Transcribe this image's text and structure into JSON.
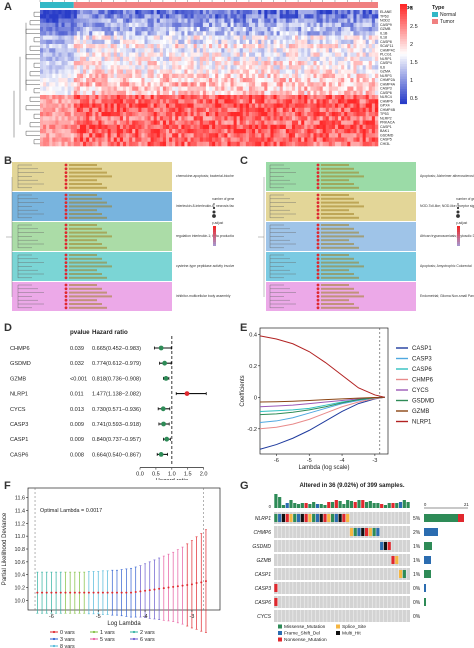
{
  "panels": {
    "A": {
      "letter": "A"
    },
    "B": {
      "letter": "B"
    },
    "C": {
      "letter": "C"
    },
    "D": {
      "letter": "D"
    },
    "E": {
      "letter": "E"
    },
    "F": {
      "letter": "F"
    },
    "G": {
      "letter": "G"
    }
  },
  "heatmap": {
    "legend_title": "Type",
    "legend_items": [
      {
        "label": "Normal",
        "color": "#33b8c6"
      },
      {
        "label": "Tumor",
        "color": "#f08080"
      }
    ],
    "scale_ticks": [
      "3",
      "2.5",
      "2",
      "1.5",
      "1",
      "0.5"
    ],
    "genes": [
      "ELANE",
      "TP63",
      "NOD2",
      "CASP9",
      "GZMB",
      "IL1B",
      "IL18",
      "CASP8",
      "SCAF11",
      "CHMP4C",
      "PLCG1",
      "NLRP1",
      "CASP4",
      "IL6",
      "GZMA",
      "NLRP3",
      "CHMP2A",
      "CHMP4A",
      "CASP3",
      "CASP6",
      "NLRC4",
      "CHMP6",
      "GPX4",
      "CHMP4B",
      "TP53",
      "NLRP2",
      "PRKACA",
      "CASP1",
      "BAK1",
      "GSDMD",
      "CASP5",
      "CHI3L"
    ]
  },
  "enrich_B": {
    "groups": [
      {
        "color": "#d9c875",
        "label": "chemokine-apoptosis; bacterial-biochem..."
      },
      {
        "color": "#4b9bd3",
        "label": "interleukin-8-interleukin-6; necrosis factor"
      },
      {
        "color": "#8fd08a",
        "label": "regulation interleukin-1; beta production"
      },
      {
        "color": "#4fc7c7",
        "label": "cysteine-type peptidase activity involved"
      },
      {
        "color": "#e58ce0",
        "label": "inhibitor-multicellular body assembly"
      }
    ],
    "size_title": "number of genes",
    "color_title": "p.adjust"
  },
  "enrich_C": {
    "groups": [
      {
        "color": "#79cf8a",
        "label": "Apoptosis; Alzheimer atherosclerosis"
      },
      {
        "color": "#d9c875",
        "label": "NOD-Toll-like; NOD-like receptor signaling"
      },
      {
        "color": "#7fb0e0",
        "label": "African trypanosomiasis; Cytosolic DNA-sensing"
      },
      {
        "color": "#4fb8d8",
        "label": "Apoptosis; Amyotrophic Colorectal"
      },
      {
        "color": "#e58ce0",
        "label": "Endometrial; Glioma Non-small Pancreatic"
      }
    ],
    "size_title": "number of genes",
    "color_title": "p.adjust"
  },
  "chart_data": [
    {
      "type": "scatter",
      "panel": "D",
      "columns": [
        "pvalue",
        "Hazard ratio"
      ],
      "rows": [
        {
          "gene": "CHMP6",
          "pvalue": "0.039",
          "hr_text": "0.665(0.452−0.983)",
          "hr": 0.665,
          "lo": 0.452,
          "hi": 0.983
        },
        {
          "gene": "GSDMD",
          "pvalue": "0.032",
          "hr_text": "0.774(0.612−0.979)",
          "hr": 0.774,
          "lo": 0.612,
          "hi": 0.979
        },
        {
          "gene": "GZMB",
          "pvalue": "<0.001",
          "hr_text": "0.818(0.736−0.908)",
          "hr": 0.818,
          "lo": 0.736,
          "hi": 0.908
        },
        {
          "gene": "NLRP1",
          "pvalue": "0.011",
          "hr_text": "1.477(1.138−2.082)",
          "hr": 1.477,
          "lo": 1.138,
          "hi": 2.082
        },
        {
          "gene": "CYCS",
          "pvalue": "0.013",
          "hr_text": "0.730(0.571−0.936)",
          "hr": 0.73,
          "lo": 0.571,
          "hi": 0.936
        },
        {
          "gene": "CASP3",
          "pvalue": "0.009",
          "hr_text": "0.741(0.593−0.918)",
          "hr": 0.741,
          "lo": 0.593,
          "hi": 0.918
        },
        {
          "gene": "CASP1",
          "pvalue": "0.009",
          "hr_text": "0.840(0.737−0.957)",
          "hr": 0.84,
          "lo": 0.737,
          "hi": 0.957
        },
        {
          "gene": "CASP6",
          "pvalue": "0.008",
          "hr_text": "0.664(0.540−0.867)",
          "hr": 0.664,
          "lo": 0.54,
          "hi": 0.867
        }
      ],
      "xlabel": "Hazard ratio",
      "xticks": [
        "0.0",
        "0.5",
        "1.0",
        "1.5",
        "2.0"
      ],
      "xlim": [
        0,
        2.2
      ],
      "reference_line": 1.0,
      "colors": {
        "protective": "#2e8b57",
        "risk": "#e0282e"
      }
    },
    {
      "type": "line",
      "panel": "E",
      "xlabel": "Lambda (log scale)",
      "ylabel": "Coefficients",
      "xticks": [
        "-6",
        "-5",
        "-4",
        "-3"
      ],
      "yticks": [
        "0.4",
        "0.2",
        "0",
        "-0.2"
      ],
      "xlim": [
        -6.5,
        -2.6
      ],
      "ylim": [
        -0.36,
        0.44
      ],
      "x": [
        -6.5,
        -6.0,
        -5.5,
        -5.0,
        -4.5,
        -4.0,
        -3.5,
        -3.0,
        -2.7
      ],
      "series": [
        {
          "name": "CASP1",
          "color": "#1f3b9e",
          "values": [
            -0.33,
            -0.3,
            -0.26,
            -0.21,
            -0.15,
            -0.09,
            -0.04,
            -0.01,
            0
          ]
        },
        {
          "name": "CASP3",
          "color": "#4fa8e0",
          "values": [
            -0.16,
            -0.15,
            -0.13,
            -0.1,
            -0.07,
            -0.04,
            -0.02,
            -0.005,
            0
          ]
        },
        {
          "name": "CASP6",
          "color": "#2fc0c0",
          "values": [
            -0.09,
            -0.085,
            -0.08,
            -0.07,
            -0.05,
            -0.03,
            -0.015,
            -0.004,
            0
          ]
        },
        {
          "name": "CHMP6",
          "color": "#e88a8a",
          "values": [
            -0.2,
            -0.19,
            -0.17,
            -0.14,
            -0.1,
            -0.06,
            -0.03,
            -0.008,
            0
          ]
        },
        {
          "name": "CYCS",
          "color": "#9b59b6",
          "values": [
            -0.06,
            -0.055,
            -0.05,
            -0.04,
            -0.03,
            -0.02,
            -0.01,
            -0.002,
            0
          ]
        },
        {
          "name": "GSDMD",
          "color": "#2e8b57",
          "values": [
            -0.11,
            -0.105,
            -0.095,
            -0.08,
            -0.06,
            -0.035,
            -0.015,
            -0.003,
            0
          ]
        },
        {
          "name": "GZMB",
          "color": "#8b4513",
          "values": [
            -0.03,
            -0.028,
            -0.025,
            -0.02,
            -0.015,
            -0.01,
            -0.005,
            -0.001,
            0
          ]
        },
        {
          "name": "NLRP1",
          "color": "#b22222",
          "values": [
            0.39,
            0.37,
            0.34,
            0.29,
            0.22,
            0.14,
            0.06,
            0.015,
            0
          ]
        }
      ],
      "legend_position": "right"
    },
    {
      "type": "scatter",
      "panel": "F",
      "xlabel": "Log Lambda",
      "ylabel": "Partial Likelihood Deviance",
      "annotation": "Optimal Lambda = 0.0017",
      "xticks": [
        "-6",
        "-5",
        "-4",
        "-3"
      ],
      "yticks": [
        "11.6",
        "11.4",
        "11.2",
        "11.0",
        "10.8",
        "10.6",
        "10.4",
        "10.2",
        "10.0"
      ],
      "xlim": [
        -6.5,
        -2.4
      ],
      "ylim": [
        9.85,
        11.75
      ],
      "points_x": [
        -6.3,
        -6.2,
        -6.1,
        -6.0,
        -5.9,
        -5.8,
        -5.7,
        -5.6,
        -5.5,
        -5.4,
        -5.3,
        -5.2,
        -5.1,
        -5.0,
        -4.9,
        -4.8,
        -4.7,
        -4.6,
        -4.5,
        -4.4,
        -4.3,
        -4.2,
        -4.1,
        -4.0,
        -3.9,
        -3.8,
        -3.7,
        -3.6,
        -3.5,
        -3.4,
        -3.3,
        -3.2,
        -3.1,
        -3.0,
        -2.9,
        -2.8,
        -2.7
      ],
      "points_y": [
        10.12,
        10.12,
        10.12,
        10.12,
        10.12,
        10.12,
        10.12,
        10.12,
        10.12,
        10.12,
        10.12,
        10.12,
        10.12,
        10.12,
        10.12,
        10.12,
        10.12,
        10.12,
        10.12,
        10.12,
        10.12,
        10.13,
        10.14,
        10.15,
        10.16,
        10.17,
        10.18,
        10.19,
        10.2,
        10.21,
        10.22,
        10.23,
        10.24,
        10.25,
        10.27,
        10.28,
        10.3
      ],
      "err": [
        0.32,
        0.32,
        0.32,
        0.32,
        0.32,
        0.32,
        0.32,
        0.32,
        0.32,
        0.32,
        0.32,
        0.33,
        0.33,
        0.33,
        0.34,
        0.34,
        0.35,
        0.35,
        0.36,
        0.37,
        0.38,
        0.39,
        0.4,
        0.42,
        0.44,
        0.46,
        0.48,
        0.5,
        0.52,
        0.54,
        0.57,
        0.6,
        0.64,
        0.68,
        0.72,
        0.76,
        0.8
      ],
      "vlines": [
        -6.35,
        -2.75
      ],
      "legend": [
        {
          "label": "0 vars",
          "color": "#e0282e"
        },
        {
          "label": "1 vars",
          "color": "#7fbf3f"
        },
        {
          "label": "2 vars",
          "color": "#2fb0a0"
        },
        {
          "label": "3 vars",
          "color": "#2f5fd0"
        },
        {
          "label": "5 vars",
          "color": "#e65ca0"
        },
        {
          "label": "6 vars",
          "color": "#6a5acd"
        },
        {
          "label": "8 vars",
          "color": "#4fb8d8"
        }
      ]
    },
    {
      "type": "table",
      "panel": "G",
      "title": "Altered in 36 (9.02%) of 399 samples.",
      "genes": [
        "NLRP1",
        "CHMP6",
        "GSDMD",
        "GZMB",
        "CASP1",
        "CASP3",
        "CASP6",
        "CYCS"
      ],
      "percents": [
        "5%",
        "2%",
        "1%",
        "1%",
        "1%",
        "0%",
        "0%",
        "0%"
      ],
      "side_axis": [
        "0",
        "21"
      ],
      "top_axis": [
        "0"
      ],
      "legend": [
        {
          "label": "Missense_Mutation",
          "color": "#2e8b57"
        },
        {
          "label": "Splice_Site",
          "color": "#f5b642"
        },
        {
          "label": "Frame_Shift_Del",
          "color": "#2b6cb0"
        },
        {
          "label": "Multi_Hit",
          "color": "#111111"
        },
        {
          "label": "Nonsense_Mutation",
          "color": "#e0282e"
        }
      ]
    }
  ]
}
